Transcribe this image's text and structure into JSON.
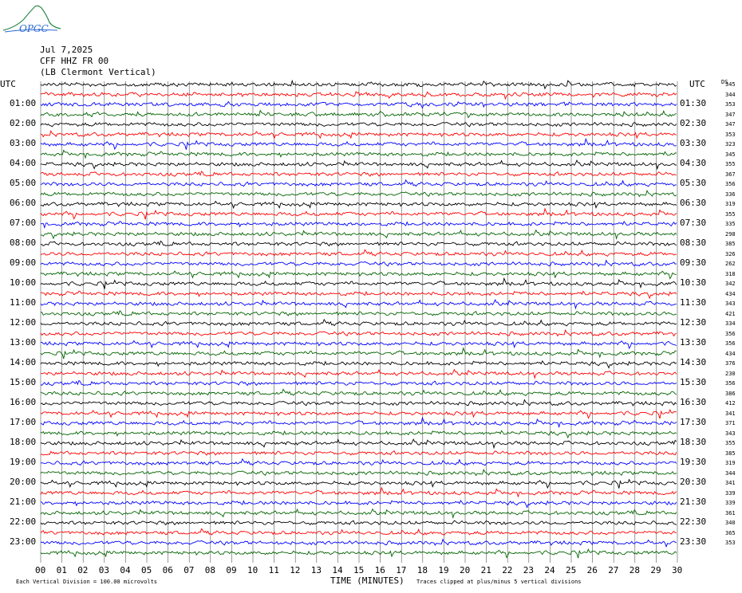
{
  "logo": {
    "text": "OPGC",
    "color": "#2a8a4a"
  },
  "header": {
    "date": "Jul 7,2025",
    "station": "CFF HHZ FR 00",
    "location": "(LB Clermont Vertical)"
  },
  "left_axis_title": "UTC",
  "right_axis_title": "UTC",
  "ds_label": "DS",
  "chart_data": {
    "type": "line",
    "description_kind": "helicorder",
    "xlabel": "TIME (MINUTES)",
    "x_ticks": [
      "00",
      "01",
      "02",
      "03",
      "04",
      "05",
      "06",
      "07",
      "08",
      "09",
      "10",
      "11",
      "12",
      "13",
      "14",
      "15",
      "16",
      "17",
      "18",
      "19",
      "20",
      "21",
      "22",
      "23",
      "24",
      "25",
      "26",
      "27",
      "28",
      "29",
      "30"
    ],
    "left_labels": [
      "01:00",
      "02:00",
      "03:00",
      "04:00",
      "05:00",
      "06:00",
      "07:00",
      "08:00",
      "09:00",
      "10:00",
      "11:00",
      "12:00",
      "13:00",
      "14:00",
      "15:00",
      "16:00",
      "17:00",
      "18:00",
      "19:00",
      "20:00",
      "21:00",
      "22:00",
      "23:00"
    ],
    "right_labels": [
      "01:30",
      "02:30",
      "03:30",
      "04:30",
      "05:30",
      "06:30",
      "07:30",
      "08:30",
      "09:30",
      "10:30",
      "11:30",
      "12:30",
      "13:30",
      "14:30",
      "15:30",
      "16:30",
      "17:30",
      "18:30",
      "19:30",
      "20:30",
      "21:30",
      "22:30",
      "23:30"
    ],
    "ds_values": [
      345,
      344,
      353,
      347,
      347,
      353,
      323,
      345,
      355,
      367,
      356,
      336,
      319,
      355,
      335,
      298,
      385,
      326,
      262,
      318,
      342,
      434,
      343,
      421,
      334,
      356,
      356,
      434,
      376,
      230,
      356,
      386,
      412,
      341,
      371,
      343,
      355,
      385,
      319,
      344,
      341,
      339,
      339,
      361,
      340,
      365,
      353
    ],
    "trace_colors": [
      "#000000",
      "#ff0000",
      "#0000ff",
      "#006400"
    ],
    "trace_count": 48,
    "x_range": [
      0,
      30
    ],
    "grid": true,
    "footer_left": "Each Vertical Division =  100.00 microvolts",
    "footer_right": "Traces clipped at plus/minus 5 vertical divisions"
  }
}
